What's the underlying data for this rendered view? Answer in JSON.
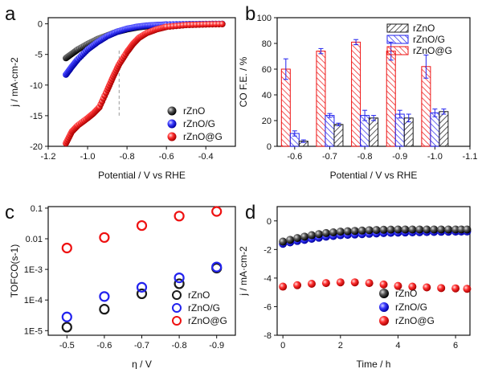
{
  "colors": {
    "rZnO": "#1a1a1a",
    "rZnO/G": "#2222ee",
    "rZnO@G": "#ee1111"
  },
  "chart_data": [
    {
      "panel": "a",
      "type": "scatter",
      "xlabel": "Potential / V vs RHE",
      "ylabel": "j / mA·cm-2",
      "xlim": [
        -1.2,
        -0.25
      ],
      "ylim": [
        -20,
        1
      ],
      "xticks": [
        "-1.2",
        "-1.0",
        "-0.8",
        "-0.6",
        "-0.4"
      ],
      "xtick_values": [
        -1.2,
        -1.0,
        -0.8,
        -0.6,
        -0.4
      ],
      "yticks": [
        "0",
        "-5",
        "-10",
        "-15",
        "-20"
      ],
      "ytick_values": [
        0,
        -5,
        -10,
        -15,
        -20
      ],
      "legend_position": "bottom-right",
      "reference_line": -0.84,
      "series": [
        {
          "name": "rZnO",
          "x": [
            -1.11,
            -1.08,
            -1.05,
            -1.0,
            -0.95,
            -0.9,
            -0.85,
            -0.8,
            -0.75,
            -0.7,
            -0.65,
            -0.6,
            -0.5,
            -0.4,
            -0.3
          ],
          "y": [
            -5.6,
            -4.9,
            -4.2,
            -3.3,
            -2.5,
            -1.9,
            -1.3,
            -0.9,
            -0.6,
            -0.4,
            -0.25,
            -0.15,
            -0.08,
            -0.04,
            -0.02
          ]
        },
        {
          "name": "rZnO/G",
          "x": [
            -1.11,
            -1.08,
            -1.05,
            -1.0,
            -0.95,
            -0.9,
            -0.85,
            -0.8,
            -0.75,
            -0.7,
            -0.65,
            -0.6,
            -0.5,
            -0.4,
            -0.3
          ],
          "y": [
            -8.3,
            -7.0,
            -5.8,
            -4.2,
            -3.0,
            -2.0,
            -1.3,
            -0.8,
            -0.5,
            -0.3,
            -0.2,
            -0.12,
            -0.06,
            -0.03,
            -0.01
          ]
        },
        {
          "name": "rZnO@G",
          "x": [
            -1.11,
            -1.08,
            -1.05,
            -1.0,
            -0.97,
            -0.94,
            -0.9,
            -0.87,
            -0.84,
            -0.8,
            -0.77,
            -0.74,
            -0.7,
            -0.65,
            -0.6,
            -0.5,
            -0.4,
            -0.3
          ],
          "y": [
            -19.5,
            -17.6,
            -16.6,
            -15.4,
            -14.6,
            -13.6,
            -10.8,
            -8.6,
            -6.6,
            -4.6,
            -3.3,
            -2.3,
            -1.5,
            -0.9,
            -0.5,
            -0.2,
            -0.1,
            -0.04
          ]
        }
      ]
    },
    {
      "panel": "b",
      "type": "bar",
      "xlabel": "Potential / V vs RHE",
      "ylabel": "CO F.E. / %",
      "xlim": [
        -0.55,
        -1.1
      ],
      "ylim": [
        0,
        100
      ],
      "xticks": [
        "-0.6",
        "-0.7",
        "-0.8",
        "-0.9",
        "-1.0",
        "-1.1"
      ],
      "xtick_values": [
        -0.6,
        -0.7,
        -0.8,
        -0.9,
        -1.0,
        -1.1
      ],
      "yticks": [
        "0",
        "20",
        "40",
        "60",
        "80",
        "100"
      ],
      "ytick_values": [
        0,
        20,
        40,
        60,
        80,
        100
      ],
      "legend_position": "top-right",
      "categories": [
        -0.6,
        -0.7,
        -0.8,
        -0.9,
        -1.0
      ],
      "series": [
        {
          "name": "rZnO@G",
          "values": [
            60,
            74,
            81,
            74,
            62
          ],
          "errors": [
            8,
            2,
            2,
            7,
            9
          ]
        },
        {
          "name": "rZnO/G",
          "values": [
            10,
            24,
            24,
            25,
            26
          ],
          "errors": [
            2,
            1.5,
            4,
            3,
            3
          ]
        },
        {
          "name": "rZnO",
          "values": [
            4,
            17,
            22,
            22,
            27
          ],
          "errors": [
            1,
            1,
            2,
            3,
            2
          ]
        }
      ]
    },
    {
      "panel": "c",
      "type": "scatter",
      "xlabel": "η / V",
      "ylabel": "TOFCO(s-1)",
      "xlim": [
        -0.45,
        -0.95
      ],
      "ylim_log10": [
        -5.15,
        -0.95
      ],
      "log_scale": true,
      "xticks": [
        "-0.5",
        "-0.6",
        "-0.7",
        "-0.8",
        "-0.9"
      ],
      "xtick_values": [
        -0.5,
        -0.6,
        -0.7,
        -0.8,
        -0.9
      ],
      "yticks": [
        "0.1",
        "0.01",
        "1E-3",
        "1E-4",
        "1E-5"
      ],
      "ytick_log10": [
        -1,
        -2,
        -3,
        -4,
        -5
      ],
      "legend_position": "bottom-right",
      "series": [
        {
          "name": "rZnO",
          "x": [
            -0.5,
            -0.6,
            -0.7,
            -0.8,
            -0.9
          ],
          "y": [
            1.3e-05,
            5e-05,
            0.00016,
            0.00034,
            0.0011
          ]
        },
        {
          "name": "rZnO/G",
          "x": [
            -0.5,
            -0.6,
            -0.7,
            -0.8,
            -0.9
          ],
          "y": [
            2.8e-05,
            0.00013,
            0.00026,
            0.00053,
            0.0012
          ]
        },
        {
          "name": "rZnO@G",
          "x": [
            -0.5,
            -0.6,
            -0.7,
            -0.8,
            -0.9
          ],
          "y": [
            0.005,
            0.011,
            0.027,
            0.055,
            0.078
          ]
        }
      ]
    },
    {
      "panel": "d",
      "type": "scatter",
      "xlabel": "Time / h",
      "ylabel": "j / mA·cm-2",
      "xlim": [
        -0.2,
        6.5
      ],
      "ylim": [
        -8,
        1
      ],
      "xticks": [
        "0",
        "2",
        "4",
        "6"
      ],
      "xtick_values": [
        0,
        2,
        4,
        6
      ],
      "yticks": [
        "0",
        "-2",
        "-4",
        "-6",
        "-8"
      ],
      "ytick_values": [
        0,
        -2,
        -4,
        -6,
        -8
      ],
      "legend_position": "bottom-right",
      "series": [
        {
          "name": "rZnO",
          "x": [
            0,
            0.5,
            1,
            1.5,
            2,
            2.5,
            3,
            3.5,
            4,
            4.5,
            5,
            5.5,
            6,
            6.4
          ],
          "y": [
            -1.45,
            -1.2,
            -1.0,
            -0.85,
            -0.75,
            -0.7,
            -0.65,
            -0.62,
            -0.6,
            -0.6,
            -0.6,
            -0.6,
            -0.6,
            -0.6
          ]
        },
        {
          "name": "rZnO/G",
          "x": [
            0,
            0.5,
            1,
            1.5,
            2,
            2.5,
            3,
            3.5,
            4,
            4.5,
            5,
            5.5,
            6,
            6.4
          ],
          "y": [
            -1.6,
            -1.4,
            -1.25,
            -1.1,
            -1.0,
            -0.95,
            -0.9,
            -0.85,
            -0.82,
            -0.8,
            -0.78,
            -0.76,
            -0.75,
            -0.74
          ]
        },
        {
          "name": "rZnO@G",
          "x": [
            0,
            0.5,
            1,
            1.5,
            2,
            2.5,
            3,
            3.5,
            4,
            4.5,
            5,
            5.5,
            6,
            6.4
          ],
          "y": [
            -4.6,
            -4.5,
            -4.4,
            -4.35,
            -4.3,
            -4.3,
            -4.35,
            -4.45,
            -4.55,
            -4.6,
            -4.65,
            -4.7,
            -4.72,
            -4.75
          ]
        }
      ]
    }
  ]
}
